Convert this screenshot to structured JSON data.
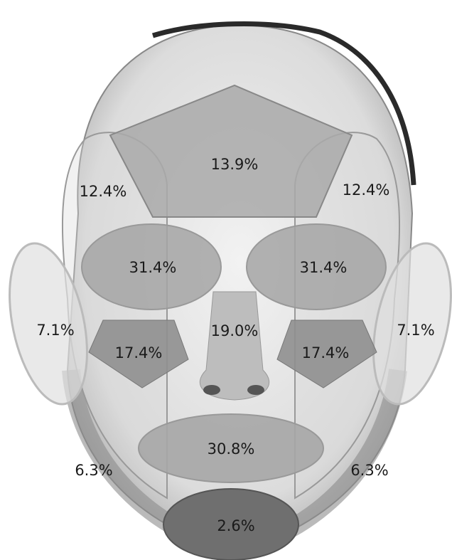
{
  "regions": [
    {
      "label": "13.9%"
    },
    {
      "label": "12.4%"
    },
    {
      "label": "12.4%"
    },
    {
      "label": "31.4%"
    },
    {
      "label": "31.4%"
    },
    {
      "label": "7.1%"
    },
    {
      "label": "7.1%"
    },
    {
      "label": "17.4%"
    },
    {
      "label": "19.0%"
    },
    {
      "label": "17.4%"
    },
    {
      "label": "30.8%"
    },
    {
      "label": "6.3%"
    },
    {
      "label": "6.3%"
    },
    {
      "label": "2.6%"
    }
  ]
}
